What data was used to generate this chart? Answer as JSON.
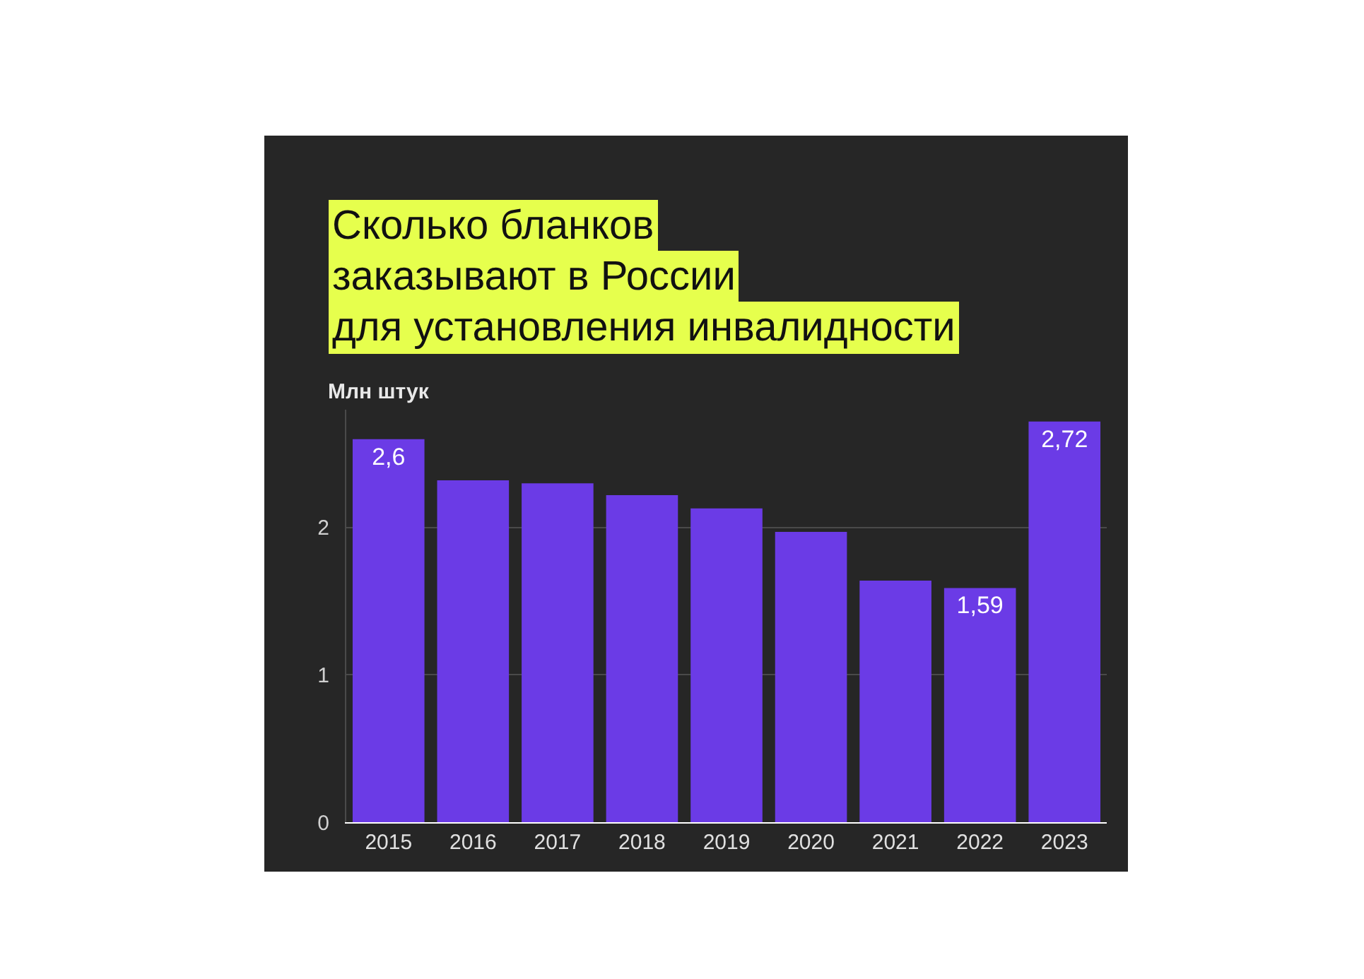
{
  "chart_data": {
    "type": "bar",
    "title": "Сколько бланков\nзаказывают в России\nдля установления инвалидности",
    "annotations": [
      "Млн штук"
    ],
    "categories": [
      "2015",
      "2016",
      "2017",
      "2018",
      "2019",
      "2020",
      "2021",
      "2022",
      "2023"
    ],
    "values": [
      2.6,
      2.32,
      2.3,
      2.22,
      2.13,
      1.97,
      1.64,
      1.59,
      2.72
    ],
    "value_labels": [
      "2,6",
      null,
      null,
      null,
      null,
      null,
      null,
      "1,59",
      "2,72"
    ],
    "color": "#6b3be6",
    "ylim": [
      0,
      2.8
    ],
    "yticks": [
      0,
      1,
      2
    ],
    "grid": "y",
    "legend": false
  }
}
